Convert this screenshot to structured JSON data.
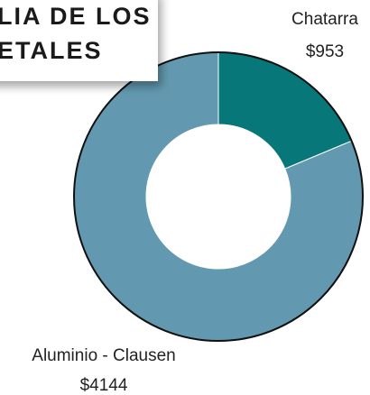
{
  "chart_data": {
    "type": "donut",
    "title_lines": [
      "LIA DE LOS",
      "ETALES"
    ],
    "categories": [
      "Chatarra",
      "Aluminio - Clausen"
    ],
    "values": [
      953,
      4144
    ],
    "value_labels": [
      "$953",
      "$4144"
    ],
    "colors": [
      "#08777a",
      "#6399b0"
    ]
  }
}
